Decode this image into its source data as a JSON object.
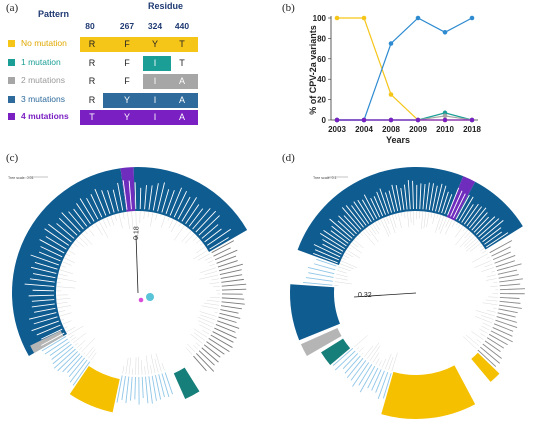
{
  "panel_labels": {
    "a": "(a)",
    "b": "(b)",
    "c": "(c)",
    "d": "(d)"
  },
  "panel_a": {
    "pattern_header": "Pattern",
    "residue_header": "Residue",
    "residue_columns": [
      "80",
      "267",
      "324",
      "440"
    ],
    "rows": [
      {
        "label": "No mutation",
        "color": "#f5c518",
        "residues": [
          "R",
          "F",
          "Y",
          "T"
        ]
      },
      {
        "label": "1 mutation",
        "color": "#1a9e96",
        "residues": [
          "R",
          "F",
          "I",
          "T"
        ]
      },
      {
        "label": "2 mutations",
        "color": "#a6a6a6",
        "residues": [
          "R",
          "F",
          "I",
          "A"
        ]
      },
      {
        "label": "3 mutations",
        "color": "#2e6a9c",
        "residues": [
          "R",
          "Y",
          "I",
          "A"
        ]
      },
      {
        "label": "4 mutations",
        "color": "#7a1fc2",
        "residues": [
          "T",
          "Y",
          "I",
          "A"
        ]
      }
    ]
  },
  "chart_data": {
    "type": "line",
    "title": "",
    "xlabel": "Years",
    "ylabel": "% of CPV-2a variants",
    "categories": [
      "2003",
      "2004",
      "2008",
      "2009",
      "2010",
      "2018"
    ],
    "ylim": [
      0,
      100
    ],
    "yticks": [
      "0",
      "20",
      "40",
      "60",
      "80",
      "100"
    ],
    "grid": false,
    "series": [
      {
        "key": "no_mutation",
        "color": "#f5c518",
        "values": [
          100,
          100,
          25,
          0,
          0,
          0
        ]
      },
      {
        "key": "one_mutation",
        "color": "#1a9e96",
        "values": [
          0,
          0,
          0,
          0,
          7,
          0
        ]
      },
      {
        "key": "two_mutations",
        "color": "#a6a6a6",
        "values": [
          0,
          0,
          0,
          0,
          4,
          0
        ]
      },
      {
        "key": "three_mutations",
        "color": "#2e8bd0",
        "values": [
          0,
          0,
          75,
          100,
          86,
          100
        ]
      },
      {
        "key": "four_mutations",
        "color": "#7a1fc2",
        "values": [
          0,
          0,
          0,
          0,
          0,
          0
        ]
      }
    ]
  },
  "panel_c": {
    "tree_scale": "Tree scale: 0.01",
    "branch_label": "0.18"
  },
  "panel_d": {
    "tree_scale": "Tree scale: 0.1",
    "branch_label": "0.32"
  }
}
